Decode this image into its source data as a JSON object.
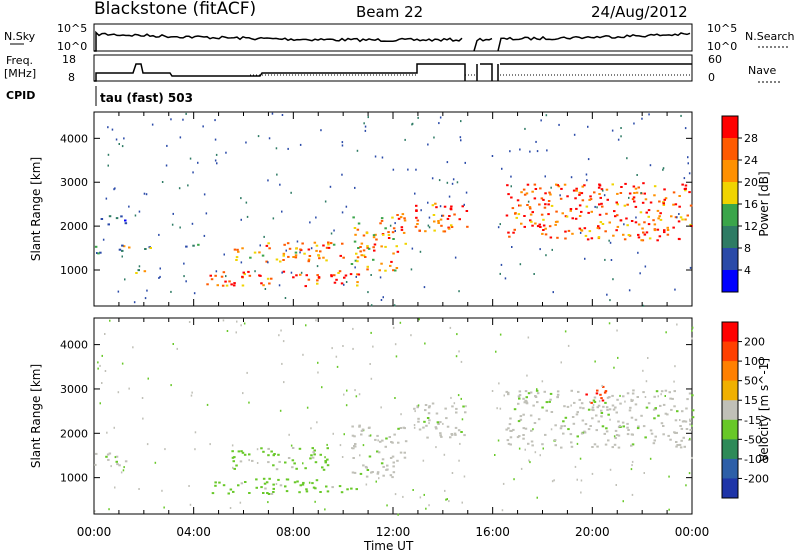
{
  "header": {
    "station": "Blackstone (fitACF)",
    "beam": "Beam 22",
    "date": "24/Aug/2012"
  },
  "panels": {
    "nsky_label": "N.Sky",
    "nsky_ticks": [
      "10^5",
      "10^0"
    ],
    "nsearch_label": "N.Search",
    "nsearch_ticks": [
      "10^5",
      "10^0"
    ],
    "freq_label": "Freq.",
    "freq_unit": "[MHz]",
    "freq_ticks": [
      "18",
      "8"
    ],
    "nave_label": "Nave",
    "nave_ticks": [
      "60",
      "0"
    ],
    "cpid_label": "CPID",
    "cpid_text": "tau (fast) 503"
  },
  "chart_data": [
    {
      "type": "heatmap",
      "name": "power",
      "ylabel": "Slant Range [km]",
      "yticks": [
        "1000",
        "2000",
        "3000",
        "4000"
      ],
      "xticks": [
        "00:00",
        "04:00",
        "08:00",
        "12:00",
        "16:00",
        "20:00",
        "00:00"
      ],
      "xlim_hours": [
        0,
        24
      ],
      "ylim_km": [
        180,
        4600
      ],
      "colorbar": {
        "label": "Power [dB]",
        "ticks": [
          "4",
          "8",
          "12",
          "16",
          "20",
          "24",
          "28"
        ],
        "colors": [
          "#0000ff",
          "#2a4aa8",
          "#2e7b64",
          "#3aa54a",
          "#f0d400",
          "#ff9000",
          "#ff5a00",
          "#ff0000"
        ]
      },
      "features": [
        {
          "t0": 0.0,
          "t1": 1.5,
          "r0": 1400,
          "r1": 1600,
          "level": 3
        },
        {
          "t0": 0.0,
          "t1": 1.3,
          "r0": 2050,
          "r1": 2250,
          "level": 2
        },
        {
          "t0": 1.6,
          "t1": 2.3,
          "r0": 900,
          "r1": 1100,
          "level": 3
        },
        {
          "t0": 2.0,
          "t1": 4.5,
          "r0": 1500,
          "r1": 1600,
          "level": 2
        },
        {
          "t0": 4.5,
          "t1": 10.8,
          "r0": 650,
          "r1": 1000,
          "level": 6
        },
        {
          "t0": 5.5,
          "t1": 10.0,
          "r0": 1200,
          "r1": 1700,
          "level": 5
        },
        {
          "t0": 10.3,
          "t1": 12.5,
          "r0": 1000,
          "r1": 2300,
          "level": 5
        },
        {
          "t0": 12.8,
          "t1": 15.0,
          "r0": 1900,
          "r1": 2600,
          "level": 6
        },
        {
          "t0": 16.5,
          "t1": 24.0,
          "r0": 1700,
          "r1": 3000,
          "level": 6
        }
      ]
    },
    {
      "type": "heatmap",
      "name": "velocity",
      "ylabel": "Slant Range [km]",
      "yticks": [
        "1000",
        "2000",
        "3000",
        "4000"
      ],
      "xticks": [
        "00:00",
        "04:00",
        "08:00",
        "12:00",
        "16:00",
        "20:00",
        "00:00"
      ],
      "xlabel": "Time UT",
      "xlim_hours": [
        0,
        24
      ],
      "ylim_km": [
        180,
        4600
      ],
      "colorbar": {
        "label": "Velocity [m s^-1]",
        "ticks": [
          "200",
          "100",
          "50",
          "15",
          "-15",
          "-50",
          "-100",
          "-200"
        ],
        "colors": [
          "#1f35a8",
          "#2d5fa8",
          "#2e8a58",
          "#68c828",
          "#c0c0b8",
          "#f0b000",
          "#ff8000",
          "#ff4000",
          "#ff0000"
        ]
      },
      "features": [
        {
          "t0": 0.0,
          "t1": 1.5,
          "r0": 1300,
          "r1": 1600,
          "level": "gray"
        },
        {
          "t0": 4.5,
          "t1": 10.5,
          "r0": 650,
          "r1": 1000,
          "level": "green"
        },
        {
          "t0": 5.5,
          "t1": 9.5,
          "r0": 1200,
          "r1": 1700,
          "level": "green"
        },
        {
          "t0": 10.3,
          "t1": 12.5,
          "r0": 1000,
          "r1": 2200,
          "level": "gray"
        },
        {
          "t0": 12.8,
          "t1": 15.0,
          "r0": 1900,
          "r1": 2700,
          "level": "gray"
        },
        {
          "t0": 16.5,
          "t1": 24.0,
          "r0": 1700,
          "r1": 3000,
          "level": "gray"
        },
        {
          "t0": 19.5,
          "t1": 20.5,
          "r0": 2700,
          "r1": 3100,
          "level": "red"
        }
      ]
    }
  ]
}
